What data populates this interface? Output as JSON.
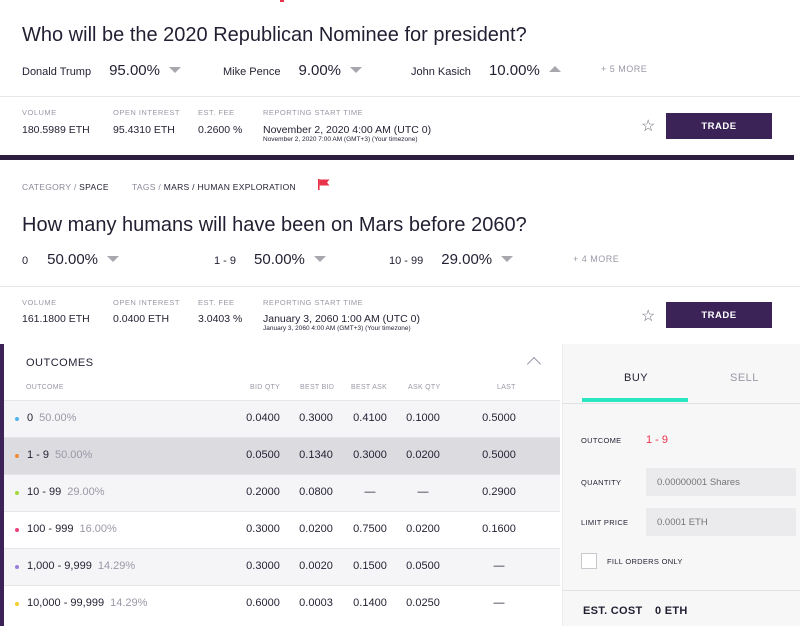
{
  "market1": {
    "title": "Who will be the 2020 Republican Nominee for president?",
    "predictions": [
      {
        "name": "Donald Trump",
        "pct": "95.00%",
        "trend": "down"
      },
      {
        "name": "Mike Pence",
        "pct": "9.00%",
        "trend": "down"
      },
      {
        "name": "John Kasich",
        "pct": "10.00%",
        "trend": "up"
      }
    ],
    "more": "+ 5 MORE",
    "meta": {
      "volume_label": "VOLUME",
      "volume": "180.5989 ETH",
      "oi_label": "OPEN INTEREST",
      "oi": "95.4310 ETH",
      "fee_label": "EST. FEE",
      "fee": "0.2600 %",
      "rep_label": "REPORTING START TIME",
      "rep": "November 2, 2020 4:00 AM (UTC 0)",
      "rep_sub": "November 2, 2020 7:00 AM (GMT+3) (Your timezone)"
    },
    "trade": "TRADE"
  },
  "market2": {
    "category_label": "CATEGORY /",
    "category": "SPACE",
    "tags_label": "TAGS /",
    "tags": "MARS / HUMAN EXPLORATION",
    "title": "How many humans will have been on Mars before 2060?",
    "predictions": [
      {
        "name": "0",
        "pct": "50.00%",
        "trend": "down"
      },
      {
        "name": "1 - 9",
        "pct": "50.00%",
        "trend": "down"
      },
      {
        "name": "10 - 99",
        "pct": "29.00%",
        "trend": "down"
      }
    ],
    "more": "+ 4 MORE",
    "meta": {
      "volume_label": "VOLUME",
      "volume": "161.1800 ETH",
      "oi_label": "OPEN INTEREST",
      "oi": "0.0400 ETH",
      "fee_label": "EST. FEE",
      "fee": "3.0403 %",
      "rep_label": "REPORTING START TIME",
      "rep": "January 3, 2060 1:00 AM (UTC 0)",
      "rep_sub": "January 3, 2060 4:00 AM (GMT+3) (Your timezone)"
    },
    "trade": "TRADE"
  },
  "outcomes": {
    "heading": "OUTCOMES",
    "columns": {
      "outcome": "OUTCOME",
      "bid_qty": "BID QTY",
      "best_bid": "BEST BID",
      "best_ask": "BEST ASK",
      "ask_qty": "ASK QTY",
      "last": "LAST"
    },
    "rows": [
      {
        "name": "0",
        "pct": "50.00%",
        "dot": "#4fb5ef",
        "bid_qty": "0.0400",
        "best_bid": "0.3000",
        "best_ask": "0.4100",
        "ask_qty": "0.1000",
        "last": "0.5000"
      },
      {
        "name": "1 - 9",
        "pct": "50.00%",
        "dot": "#f08a36",
        "bid_qty": "0.0500",
        "best_bid": "0.1340",
        "best_ask": "0.3000",
        "ask_qty": "0.0200",
        "last": "0.5000"
      },
      {
        "name": "10 - 99",
        "pct": "29.00%",
        "dot": "#a3d93a",
        "bid_qty": "0.2000",
        "best_bid": "0.0800",
        "best_ask": "—",
        "ask_qty": "—",
        "last": "0.2900"
      },
      {
        "name": "100 - 999",
        "pct": "16.00%",
        "dot": "#e8417c",
        "bid_qty": "0.3000",
        "best_bid": "0.0200",
        "best_ask": "0.7500",
        "ask_qty": "0.0200",
        "last": "0.1600"
      },
      {
        "name": "1,000 - 9,999",
        "pct": "14.29%",
        "dot": "#9b7de0",
        "bid_qty": "0.3000",
        "best_bid": "0.0020",
        "best_ask": "0.1500",
        "ask_qty": "0.0500",
        "last": "—"
      },
      {
        "name": "10,000 - 99,999",
        "pct": "14.29%",
        "dot": "#f2cd2f",
        "bid_qty": "0.6000",
        "best_bid": "0.0003",
        "best_ask": "0.1400",
        "ask_qty": "0.0250",
        "last": "—"
      }
    ]
  },
  "order": {
    "buy": "BUY",
    "sell": "SELL",
    "outcome_label": "OUTCOME",
    "outcome_value": "1 - 9",
    "quantity_label": "QUANTITY",
    "quantity_placeholder": "0.00000001 Shares",
    "limit_label": "LIMIT PRICE",
    "limit_placeholder": "0.0001 ETH",
    "fill_orders_label": "FILL ORDERS ONLY",
    "est_cost_label": "EST. COST",
    "est_cost_value": "0 ETH"
  },
  "colors": {
    "accent": "#3b2358",
    "tab_accent": "#2ae7c2",
    "flag": "#e8334a"
  }
}
